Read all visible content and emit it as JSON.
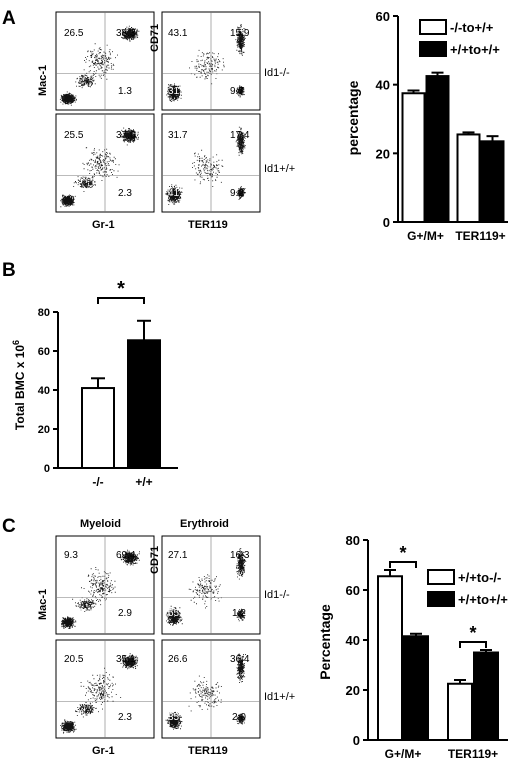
{
  "panels": {
    "A": {
      "letter": "A",
      "flow": {
        "col1_ylabel": "Mac-1",
        "col1_xlabel": "Gr-1",
        "col2_ylabel": "CD71",
        "col2_xlabel": "TER119",
        "row_labels": [
          "Id1-/-",
          "Id1+/+"
        ],
        "quadrants": [
          [
            [
              "26.5",
              "38.3",
              "33",
              "1.3"
            ],
            [
              "43.1",
              "15.9",
              "31.4",
              "9.7"
            ]
          ],
          [
            [
              "25.5",
              "37.6",
              "34.6",
              "2.3"
            ],
            [
              "31.7",
              "17.4",
              "41.6",
              "9.2"
            ]
          ]
        ]
      }
    },
    "B": {
      "letter": "B"
    },
    "C": {
      "letter": "C",
      "flow": {
        "col1_title": "Myeloid",
        "col2_title": "Erythroid",
        "col1_ylabel": "Mac-1",
        "col1_xlabel": "Gr-1",
        "col2_ylabel": "CD71",
        "col2_xlabel": "TER119",
        "row_labels": [
          "Id1-/-",
          "Id1+/+"
        ],
        "quadrants": [
          [
            [
              "9.3",
              "69.4",
              "18.5",
              "2.9"
            ],
            [
              "27.1",
              "16.3",
              "55.4",
              "1.2"
            ]
          ],
          [
            [
              "20.5",
              "35.1",
              "42.1",
              "2.3"
            ],
            [
              "26.6",
              "36.4",
              "35.0",
              "2.0"
            ]
          ]
        ]
      }
    }
  },
  "chart_data": [
    {
      "id": "A-bar",
      "type": "bar",
      "categories": [
        "G+/M+",
        "TER119+"
      ],
      "series": [
        {
          "name": "-/-to+/+",
          "values": [
            37.5,
            25.5
          ],
          "errors": [
            0.8,
            0.6
          ],
          "color": "#ffffff"
        },
        {
          "name": "+/+to+/+",
          "values": [
            42.5,
            23.5
          ],
          "errors": [
            1.0,
            1.5
          ],
          "color": "#000000"
        }
      ],
      "ylabel": "percentage",
      "ylim": [
        0,
        60
      ],
      "yticks": [
        "0",
        "20",
        "40",
        "60"
      ],
      "significance": [],
      "legend": "top-right"
    },
    {
      "id": "B-bar",
      "type": "bar",
      "categories": [
        "-/-",
        "+/+"
      ],
      "series": [
        {
          "values": [
            41,
            65.5
          ],
          "errors": [
            5,
            10
          ],
          "colors": [
            "#ffffff",
            "#000000"
          ]
        }
      ],
      "ylabel": "Total BMC x 10",
      "ylabel_sup": "6",
      "ylim": [
        0,
        80
      ],
      "yticks": [
        "0",
        "20",
        "40",
        "60",
        "80"
      ],
      "significance": [
        {
          "between": [
            0,
            1
          ],
          "label": "*"
        }
      ]
    },
    {
      "id": "C-bar",
      "type": "bar",
      "categories": [
        "G+/M+",
        "TER119+"
      ],
      "series": [
        {
          "name": "+/+to-/-",
          "values": [
            65.5,
            22.5
          ],
          "errors": [
            2.5,
            1.5
          ],
          "color": "#ffffff"
        },
        {
          "name": "+/+to+/+",
          "values": [
            41.5,
            35
          ],
          "errors": [
            1.0,
            1.0
          ],
          "color": "#000000"
        }
      ],
      "ylabel": "Percentage",
      "ylim": [
        0,
        80
      ],
      "yticks": [
        "0",
        "20",
        "40",
        "60",
        "80"
      ],
      "significance": [
        {
          "category": 0,
          "label": "*"
        },
        {
          "category": 1,
          "label": "*"
        }
      ],
      "legend": "top-right"
    }
  ]
}
